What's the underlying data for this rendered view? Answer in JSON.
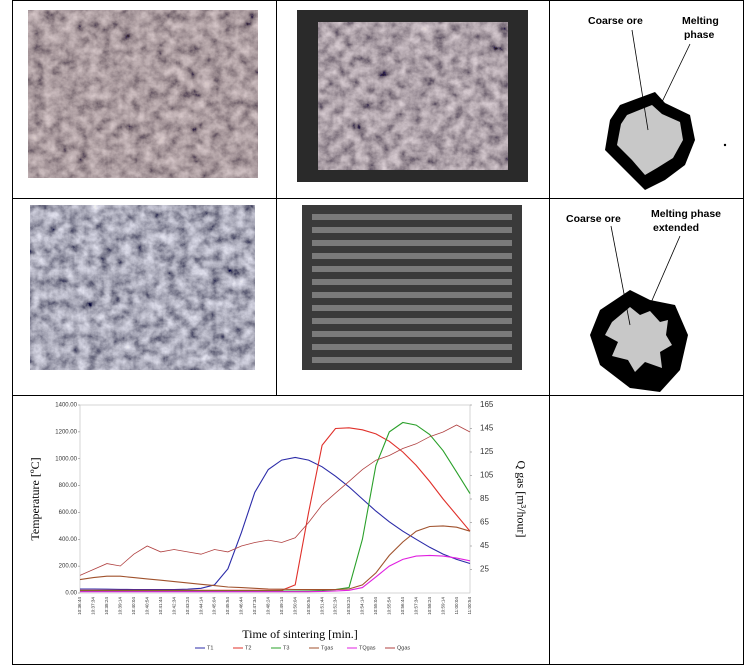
{
  "cells": {
    "diagram1": {
      "coarse": "Coarse ore",
      "melting": [
        "Melting",
        "phase"
      ]
    },
    "diagram2": {
      "coarse": "Coarse ore",
      "melting": [
        "Melting phase",
        "extended"
      ]
    }
  },
  "chart_data": {
    "type": "line",
    "y_label": "Temperature [ºC]",
    "y2_label": "Q gas [m³/hour]",
    "x_label": "Time of sintering [min.]",
    "categories": [
      "10:36:44",
      "10:37:34",
      "10:38:24",
      "10:39:14",
      "10:40:04",
      "10:40:54",
      "10:41:44",
      "10:42:34",
      "10:43:24",
      "10:44:14",
      "10:45:04",
      "10:45:54",
      "10:46:44",
      "10:47:34",
      "10:48:24",
      "10:49:14",
      "10:50:04",
      "10:50:54",
      "10:51:44",
      "10:52:34",
      "10:53:24",
      "10:54:14",
      "10:55:04",
      "10:55:54",
      "10:56:44",
      "10:57:34",
      "10:58:24",
      "10:59:14",
      "11:00:04",
      "11:00:54"
    ],
    "ylim": [
      0,
      1400
    ],
    "yticks": [
      {
        "value": 0,
        "label": "0.00"
      },
      {
        "value": 200,
        "label": "200.00"
      },
      {
        "value": 400,
        "label": "400.00"
      },
      {
        "value": 600,
        "label": "600.00"
      },
      {
        "value": 800,
        "label": "800.00"
      },
      {
        "value": 1000,
        "label": "1000.00"
      },
      {
        "value": 1200,
        "label": "1200.00"
      },
      {
        "value": 1400,
        "label": "1400.00"
      }
    ],
    "y2lim": [
      5,
      165
    ],
    "y2ticks": [
      25,
      45,
      65,
      85,
      105,
      125,
      145,
      165
    ],
    "series": [
      {
        "name": "T1",
        "color": "#2b2ba8",
        "values": [
          30,
          30,
          28,
          27,
          26,
          25,
          25,
          25,
          28,
          35,
          60,
          180,
          450,
          750,
          920,
          990,
          1010,
          990,
          940,
          870,
          790,
          700,
          610,
          530,
          460,
          400,
          340,
          290,
          250,
          220
        ]
      },
      {
        "name": "T2",
        "color": "#e0302a",
        "values": [
          20,
          20,
          20,
          20,
          20,
          20,
          20,
          20,
          20,
          20,
          20,
          20,
          20,
          20,
          20,
          20,
          60,
          600,
          1100,
          1225,
          1230,
          1215,
          1185,
          1130,
          1050,
          950,
          830,
          700,
          580,
          460
        ]
      },
      {
        "name": "T3",
        "color": "#2aa02a",
        "values": [
          15,
          15,
          15,
          15,
          15,
          15,
          15,
          15,
          15,
          15,
          15,
          15,
          15,
          15,
          15,
          15,
          15,
          15,
          18,
          25,
          40,
          400,
          950,
          1200,
          1270,
          1250,
          1180,
          1060,
          900,
          740
        ]
      },
      {
        "name": "Tgas",
        "color": "#a0522d",
        "values": [
          100,
          115,
          125,
          125,
          115,
          105,
          95,
          85,
          75,
          65,
          55,
          45,
          40,
          35,
          30,
          28,
          26,
          25,
          25,
          25,
          30,
          60,
          150,
          280,
          380,
          460,
          495,
          500,
          490,
          460
        ]
      },
      {
        "name": "TQgas",
        "color": "#e020e0",
        "values": [
          10,
          10,
          10,
          10,
          10,
          10,
          10,
          10,
          10,
          10,
          10,
          10,
          10,
          10,
          10,
          10,
          10,
          10,
          12,
          15,
          20,
          40,
          120,
          200,
          250,
          275,
          280,
          275,
          260,
          240
        ]
      },
      {
        "name": "Qgas",
        "color": "#b04040",
        "axis": "y2",
        "values": [
          20,
          25,
          30,
          28,
          38,
          45,
          40,
          42,
          40,
          38,
          42,
          40,
          45,
          48,
          50,
          48,
          52,
          65,
          80,
          90,
          100,
          110,
          118,
          122,
          128,
          132,
          138,
          142,
          148,
          142
        ]
      }
    ]
  }
}
